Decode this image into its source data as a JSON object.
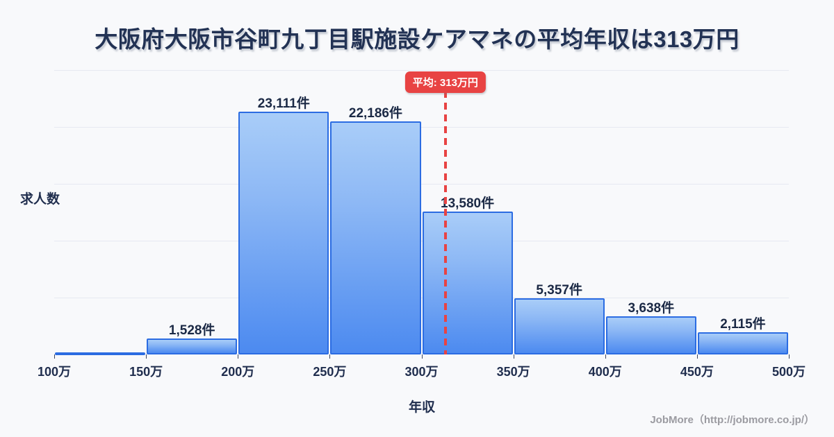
{
  "title": "大阪府大阪市谷町九丁目駅施設ケアマネの平均年収は313万円",
  "ylabel": "求人数",
  "xlabel": "年収",
  "credit": "JobMore（http://jobmore.co.jp/）",
  "colors": {
    "background": "#f8f9fb",
    "title_text": "#223254",
    "bar_border": "#2b6ce2",
    "bar_fill_top": "#a9cdf8",
    "bar_fill_bottom": "#4c8af0",
    "gridline": "#e6e9f1",
    "label_text": "#1b2945",
    "average_red": "#e84343",
    "credit_text": "#9b9ba1"
  },
  "chart_data": {
    "type": "bar",
    "title": "大阪府大阪市谷町九丁目駅施設ケアマネの平均年収は313万円",
    "xlabel": "年収",
    "ylabel": "求人数",
    "x_unit": "万円",
    "x_range": [
      100,
      500
    ],
    "x_tick_values": [
      100,
      150,
      200,
      250,
      300,
      350,
      400,
      450,
      500
    ],
    "x_tick_labels": [
      "100万",
      "150万",
      "200万",
      "250万",
      "300万",
      "350万",
      "400万",
      "450万",
      "500万"
    ],
    "grid": true,
    "y_axis_numeric_labels": false,
    "bins": [
      {
        "range": [
          100,
          150
        ],
        "value": 0,
        "label": ""
      },
      {
        "range": [
          150,
          200
        ],
        "value": 1528,
        "label": "1,528件"
      },
      {
        "range": [
          200,
          250
        ],
        "value": 23111,
        "label": "23,111件"
      },
      {
        "range": [
          250,
          300
        ],
        "value": 22186,
        "label": "22,186件"
      },
      {
        "range": [
          300,
          350
        ],
        "value": 13580,
        "label": "13,580件"
      },
      {
        "range": [
          350,
          400
        ],
        "value": 5357,
        "label": "5,357件"
      },
      {
        "range": [
          400,
          450
        ],
        "value": 3638,
        "label": "3,638件"
      },
      {
        "range": [
          450,
          500
        ],
        "value": 2115,
        "label": "2,115件"
      }
    ],
    "average": 313,
    "average_label": "平均: 313万円",
    "legend": null
  }
}
